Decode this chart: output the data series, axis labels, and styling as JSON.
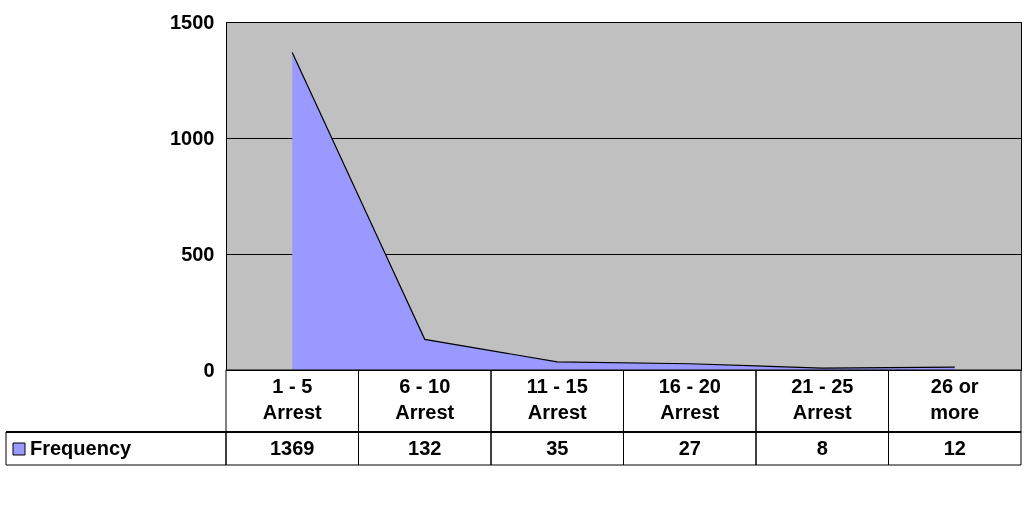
{
  "chart_data": {
    "type": "area",
    "categories": [
      "1 - 5 Arrest",
      "6 - 10 Arrest",
      "11 - 15 Arrest",
      "16 - 20 Arrest",
      "21 - 25 Arrest",
      "26 or more"
    ],
    "series": [
      {
        "name": "Frequency",
        "color": "#9999ff",
        "values": [
          1369,
          132,
          35,
          27,
          8,
          12
        ]
      }
    ],
    "ylim": [
      0,
      1500
    ],
    "yticks": [
      0,
      500,
      1000,
      1500
    ],
    "grid": "y",
    "legend": "bottom",
    "data_labels": true,
    "marker": "none"
  }
}
